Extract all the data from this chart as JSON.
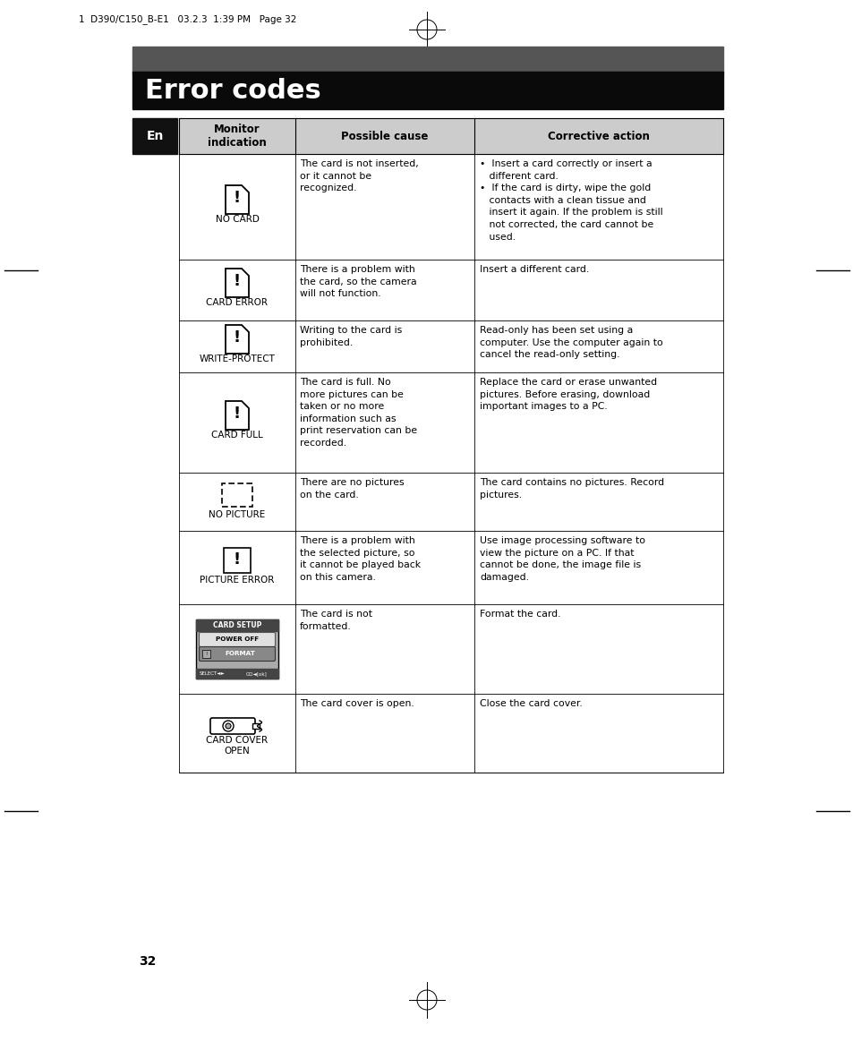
{
  "page_header": "1  D390/C150_B-E1   03.2.3  1:39 PM   Page 32",
  "title": "Error codes",
  "header_col1": "Monitor\nindication",
  "header_col2": "Possible cause",
  "header_col3": "Corrective action",
  "page_number": "32",
  "rows": [
    {
      "icon": "card_icon",
      "label": "NO CARD",
      "cause": "The card is not inserted,\nor it cannot be\nrecognized.",
      "action": "•  Insert a card correctly or insert a\n   different card.\n•  If the card is dirty, wipe the gold\n   contacts with a clean tissue and\n   insert it again. If the problem is still\n   not corrected, the card cannot be\n   used."
    },
    {
      "icon": "card_icon",
      "label": "CARD ERROR",
      "cause": "There is a problem with\nthe card, so the camera\nwill not function.",
      "action": "Insert a different card."
    },
    {
      "icon": "card_icon",
      "label": "WRITE-PROTECT",
      "cause": "Writing to the card is\nprohibited.",
      "action": "Read-only has been set using a\ncomputer. Use the computer again to\ncancel the read-only setting."
    },
    {
      "icon": "card_icon",
      "label": "CARD FULL",
      "cause": "The card is full. No\nmore pictures can be\ntaken or no more\ninformation such as\nprint reservation can be\nrecorded.",
      "action": "Replace the card or erase unwanted\npictures. Before erasing, download\nimportant images to a PC."
    },
    {
      "icon": "picture_icon",
      "label": "NO PICTURE",
      "cause": "There are no pictures\non the card.",
      "action": "The card contains no pictures. Record\npictures."
    },
    {
      "icon": "exclaim_icon",
      "label": "PICTURE ERROR",
      "cause": "There is a problem with\nthe selected picture, so\nit cannot be played back\non this camera.",
      "action": "Use image processing software to\nview the picture on a PC. If that\ncannot be done, the image file is\ndamaged."
    },
    {
      "icon": "setup_screen",
      "label": "",
      "cause": "The card is not\nformatted.",
      "action": "Format the card."
    },
    {
      "icon": "cover_icon",
      "label": "CARD COVER\nOPEN",
      "cause": "The card cover is open.",
      "action": "Close the card cover."
    }
  ]
}
